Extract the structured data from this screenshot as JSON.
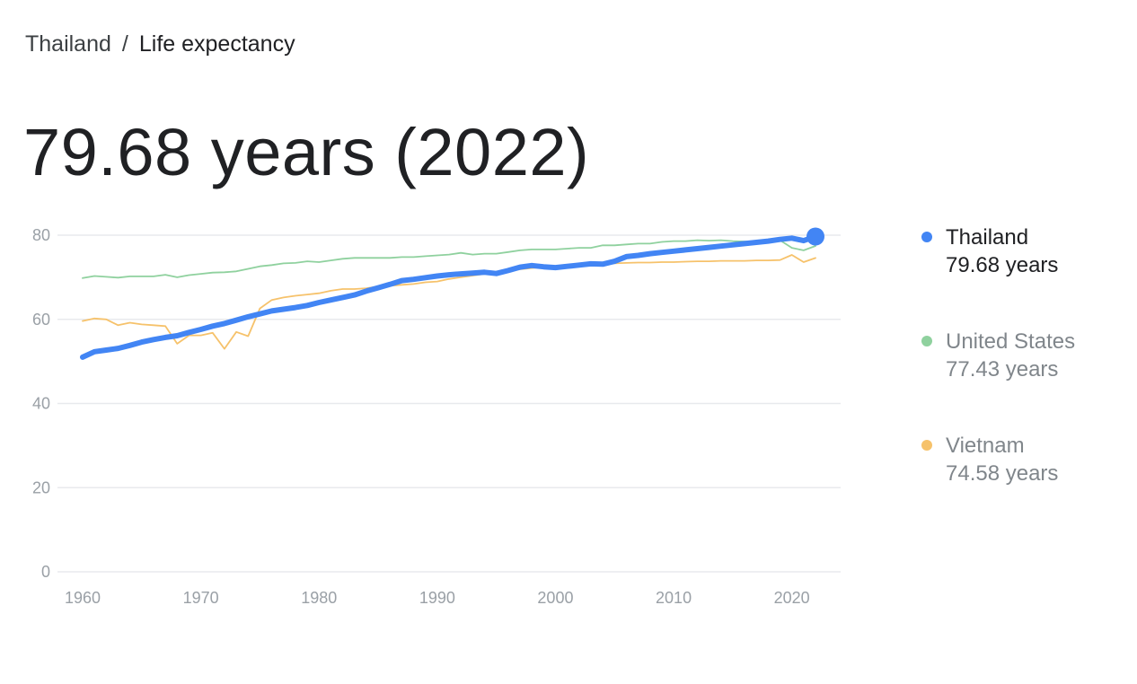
{
  "breadcrumb": {
    "parent": "Thailand",
    "separator": "/",
    "current": "Life expectancy"
  },
  "headline": "79.68 years (2022)",
  "colors": {
    "Thailand": "#4285f4",
    "United States": "#8fd19e",
    "Vietnam": "#f6c26b",
    "grid": "#e8eaed",
    "tick": "#9aa0a6"
  },
  "legend": [
    {
      "name": "Thailand",
      "value": "79.68 years",
      "color": "#4285f4",
      "primary": true
    },
    {
      "name": "United States",
      "value": "77.43 years",
      "color": "#8fd19e",
      "primary": false
    },
    {
      "name": "Vietnam",
      "value": "74.58 years",
      "color": "#f6c26b",
      "primary": false
    }
  ],
  "chart_data": {
    "type": "line",
    "title": "",
    "xlabel": "",
    "ylabel": "",
    "xlim": [
      1960,
      2022
    ],
    "ylim": [
      0,
      80
    ],
    "xticks": [
      1960,
      1970,
      1980,
      1990,
      2000,
      2010,
      2020
    ],
    "yticks": [
      0,
      20,
      40,
      60,
      80
    ],
    "grid": true,
    "legend_position": "right",
    "highlight_point": {
      "series": "Thailand",
      "x": 2022,
      "y": 79.68
    },
    "x": [
      1960,
      1961,
      1962,
      1963,
      1964,
      1965,
      1966,
      1967,
      1968,
      1969,
      1970,
      1971,
      1972,
      1973,
      1974,
      1975,
      1976,
      1977,
      1978,
      1979,
      1980,
      1981,
      1982,
      1983,
      1984,
      1985,
      1986,
      1987,
      1988,
      1989,
      1990,
      1991,
      1992,
      1993,
      1994,
      1995,
      1996,
      1997,
      1998,
      1999,
      2000,
      2001,
      2002,
      2003,
      2004,
      2005,
      2006,
      2007,
      2008,
      2009,
      2010,
      2011,
      2012,
      2013,
      2014,
      2015,
      2016,
      2017,
      2018,
      2019,
      2020,
      2021,
      2022
    ],
    "series": [
      {
        "name": "United States",
        "values": [
          69.8,
          70.3,
          70.1,
          69.9,
          70.2,
          70.2,
          70.2,
          70.6,
          70.0,
          70.5,
          70.8,
          71.1,
          71.2,
          71.4,
          72.0,
          72.6,
          72.9,
          73.3,
          73.4,
          73.8,
          73.6,
          74.0,
          74.4,
          74.6,
          74.6,
          74.6,
          74.6,
          74.8,
          74.8,
          75.0,
          75.2,
          75.4,
          75.8,
          75.4,
          75.6,
          75.6,
          76.0,
          76.4,
          76.6,
          76.6,
          76.6,
          76.8,
          77.0,
          77.0,
          77.6,
          77.6,
          77.8,
          78.0,
          78.0,
          78.4,
          78.6,
          78.6,
          78.8,
          78.7,
          78.8,
          78.6,
          78.5,
          78.4,
          78.6,
          78.8,
          77.0,
          76.4,
          77.43
        ]
      },
      {
        "name": "Vietnam",
        "values": [
          59.6,
          60.2,
          60.0,
          58.6,
          59.2,
          58.8,
          58.6,
          58.4,
          54.2,
          56.2,
          56.2,
          56.8,
          53.0,
          57.0,
          56.0,
          62.6,
          64.6,
          65.2,
          65.6,
          65.9,
          66.2,
          66.8,
          67.2,
          67.2,
          67.4,
          67.8,
          68.0,
          68.2,
          68.4,
          68.8,
          69.0,
          69.6,
          70.0,
          70.4,
          70.8,
          71.0,
          71.5,
          71.9,
          72.2,
          72.4,
          72.6,
          72.8,
          73.0,
          73.1,
          73.2,
          73.3,
          73.4,
          73.5,
          73.5,
          73.6,
          73.6,
          73.7,
          73.8,
          73.8,
          73.9,
          73.9,
          73.9,
          74.0,
          74.0,
          74.1,
          75.3,
          73.6,
          74.58
        ]
      },
      {
        "name": "Thailand",
        "values": [
          51.0,
          52.3,
          52.7,
          53.1,
          53.8,
          54.6,
          55.2,
          55.7,
          56.1,
          56.9,
          57.6,
          58.4,
          59.0,
          59.8,
          60.6,
          61.3,
          62.0,
          62.4,
          62.8,
          63.3,
          64.0,
          64.6,
          65.2,
          65.8,
          66.7,
          67.5,
          68.3,
          69.2,
          69.5,
          69.9,
          70.3,
          70.6,
          70.8,
          71.0,
          71.2,
          70.9,
          71.6,
          72.4,
          72.8,
          72.5,
          72.3,
          72.6,
          72.9,
          73.2,
          73.1,
          73.8,
          74.9,
          75.2,
          75.6,
          75.9,
          76.2,
          76.5,
          76.8,
          77.1,
          77.4,
          77.7,
          78.0,
          78.3,
          78.6,
          79.0,
          79.3,
          78.7,
          79.68
        ]
      }
    ]
  }
}
